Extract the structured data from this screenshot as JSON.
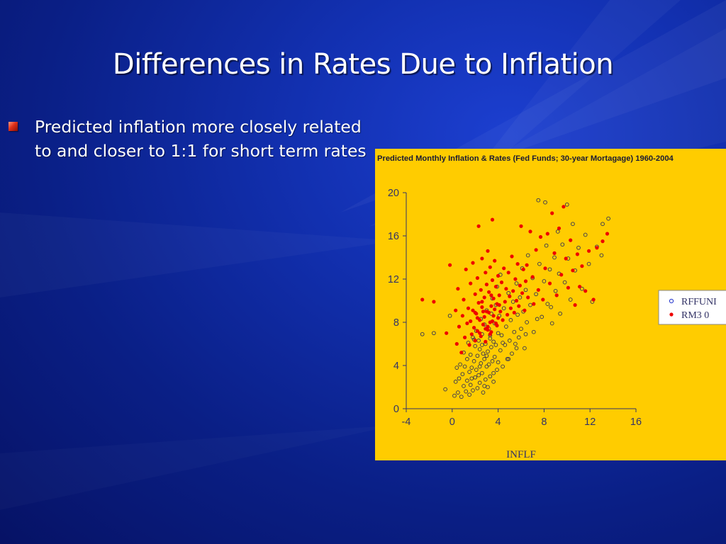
{
  "slide": {
    "title": "Differences in Rates Due to Inflation",
    "bullets": [
      "Predicted inflation more closely related to and closer to 1:1 for short term rates"
    ]
  },
  "colors": {
    "background": "#0a1f86",
    "chart_panel": "#ffcc00",
    "rffunds": "#2233cc",
    "rm30": "#ee0000",
    "bullet": "#e0301a"
  },
  "chart_data": {
    "type": "scatter",
    "title": "Predicted Monthly Inflation & Rates (Fed Funds; 30-year Mortagage) 1960-2004",
    "xlabel": "INFLF",
    "ylabel": "",
    "xlim": [
      -4,
      16
    ],
    "ylim": [
      0,
      20
    ],
    "xticks": [
      "-4",
      "0",
      "4",
      "8",
      "12",
      "16"
    ],
    "yticks": [
      "0",
      "4",
      "8",
      "12",
      "16",
      "20"
    ],
    "legend_position": "right",
    "series": [
      {
        "name": "RFFUNDS",
        "legend_label": "RFFUNI",
        "marker": "open-circle",
        "color": "#2233cc",
        "points": [
          [
            -2.6,
            6.9
          ],
          [
            -1.6,
            7.0
          ],
          [
            -0.6,
            1.8
          ],
          [
            -0.2,
            8.6
          ],
          [
            0.2,
            1.2
          ],
          [
            0.3,
            2.5
          ],
          [
            0.4,
            3.8
          ],
          [
            0.5,
            1.5
          ],
          [
            0.6,
            2.8
          ],
          [
            0.7,
            4.1
          ],
          [
            0.8,
            1.1
          ],
          [
            0.9,
            3.2
          ],
          [
            1.0,
            5.2
          ],
          [
            1.0,
            2.1
          ],
          [
            1.1,
            3.9
          ],
          [
            1.2,
            1.6
          ],
          [
            1.3,
            4.6
          ],
          [
            1.3,
            2.6
          ],
          [
            1.4,
            6.1
          ],
          [
            1.5,
            3.4
          ],
          [
            1.5,
            1.3
          ],
          [
            1.6,
            5.0
          ],
          [
            1.6,
            2.2
          ],
          [
            1.7,
            3.8
          ],
          [
            1.8,
            6.6
          ],
          [
            1.8,
            1.7
          ],
          [
            1.9,
            4.4
          ],
          [
            2.0,
            2.9
          ],
          [
            2.0,
            5.8
          ],
          [
            2.1,
            3.6
          ],
          [
            2.1,
            7.2
          ],
          [
            2.2,
            1.9
          ],
          [
            2.2,
            4.9
          ],
          [
            2.3,
            6.3
          ],
          [
            2.3,
            3.1
          ],
          [
            2.4,
            5.5
          ],
          [
            2.4,
            2.4
          ],
          [
            2.5,
            8.3
          ],
          [
            2.5,
            4.2
          ],
          [
            2.6,
            6.9
          ],
          [
            2.6,
            3.3
          ],
          [
            2.7,
            5.1
          ],
          [
            2.7,
            1.5
          ],
          [
            2.8,
            7.8
          ],
          [
            2.8,
            4.6
          ],
          [
            2.9,
            2.7
          ],
          [
            2.9,
            6.0
          ],
          [
            3.0,
            3.9
          ],
          [
            3.0,
            9.1
          ],
          [
            3.1,
            5.3
          ],
          [
            3.1,
            2.0
          ],
          [
            3.2,
            7.4
          ],
          [
            3.2,
            4.1
          ],
          [
            3.3,
            6.5
          ],
          [
            3.3,
            3.0
          ],
          [
            3.4,
            8.8
          ],
          [
            3.4,
            5.7
          ],
          [
            3.5,
            4.4
          ],
          [
            3.5,
            10.2
          ],
          [
            3.6,
            6.2
          ],
          [
            3.6,
            2.5
          ],
          [
            3.7,
            7.9
          ],
          [
            3.7,
            4.8
          ],
          [
            3.8,
            9.6
          ],
          [
            3.8,
            5.9
          ],
          [
            3.9,
            3.6
          ],
          [
            3.9,
            11.3
          ],
          [
            4.0,
            7.0
          ],
          [
            4.0,
            4.3
          ],
          [
            4.1,
            8.6
          ],
          [
            4.2,
            5.4
          ],
          [
            4.2,
            12.4
          ],
          [
            4.3,
            6.8
          ],
          [
            4.4,
            3.9
          ],
          [
            4.5,
            9.3
          ],
          [
            4.6,
            5.9
          ],
          [
            4.7,
            7.6
          ],
          [
            4.8,
            4.6
          ],
          [
            4.9,
            10.7
          ],
          [
            5.0,
            6.3
          ],
          [
            5.1,
            8.2
          ],
          [
            5.2,
            5.1
          ],
          [
            5.3,
            9.9
          ],
          [
            5.4,
            7.1
          ],
          [
            5.5,
            6.0
          ],
          [
            5.6,
            11.6
          ],
          [
            5.7,
            8.7
          ],
          [
            5.8,
            6.6
          ],
          [
            5.9,
            10.3
          ],
          [
            6.0,
            7.4
          ],
          [
            6.1,
            13.0
          ],
          [
            6.2,
            9.0
          ],
          [
            6.3,
            5.6
          ],
          [
            6.4,
            11.0
          ],
          [
            6.5,
            8.0
          ],
          [
            6.6,
            14.2
          ],
          [
            6.8,
            9.6
          ],
          [
            7.0,
            12.1
          ],
          [
            7.1,
            7.1
          ],
          [
            7.3,
            10.6
          ],
          [
            7.5,
            19.3
          ],
          [
            7.6,
            13.4
          ],
          [
            7.8,
            8.5
          ],
          [
            8.0,
            11.8
          ],
          [
            8.1,
            19.1
          ],
          [
            8.2,
            15.1
          ],
          [
            8.3,
            9.7
          ],
          [
            8.5,
            12.9
          ],
          [
            8.7,
            7.9
          ],
          [
            8.9,
            14.0
          ],
          [
            9.0,
            10.9
          ],
          [
            9.2,
            16.4
          ],
          [
            9.3,
            12.5
          ],
          [
            9.4,
            8.8
          ],
          [
            9.6,
            15.2
          ],
          [
            9.8,
            11.7
          ],
          [
            10.0,
            18.9
          ],
          [
            10.1,
            13.9
          ],
          [
            10.3,
            10.1
          ],
          [
            10.5,
            17.1
          ],
          [
            10.7,
            12.8
          ],
          [
            11.0,
            14.9
          ],
          [
            11.3,
            11.1
          ],
          [
            11.6,
            16.1
          ],
          [
            11.9,
            13.4
          ],
          [
            12.2,
            9.9
          ],
          [
            12.6,
            15.0
          ],
          [
            13.0,
            14.2
          ],
          [
            13.1,
            17.1
          ],
          [
            13.6,
            17.6
          ],
          [
            1.9,
            6.4
          ],
          [
            2.6,
            5.9
          ],
          [
            3.3,
            6.8
          ],
          [
            4.4,
            6.1
          ],
          [
            3.0,
            4.9
          ],
          [
            2.4,
            3.9
          ],
          [
            3.6,
            3.3
          ],
          [
            1.7,
            2.8
          ],
          [
            2.8,
            2.1
          ],
          [
            4.9,
            4.6
          ],
          [
            5.6,
            5.6
          ],
          [
            6.4,
            6.9
          ],
          [
            7.4,
            8.3
          ],
          [
            8.6,
            9.4
          ]
        ]
      },
      {
        "name": "RM30",
        "legend_label": "RM3 0",
        "marker": "filled-circle",
        "color": "#ee0000",
        "points": [
          [
            -2.6,
            10.1
          ],
          [
            -1.6,
            9.9
          ],
          [
            -0.5,
            7.0
          ],
          [
            -0.2,
            13.3
          ],
          [
            0.3,
            9.1
          ],
          [
            0.4,
            6.0
          ],
          [
            0.5,
            11.1
          ],
          [
            0.6,
            7.6
          ],
          [
            0.8,
            5.2
          ],
          [
            0.9,
            8.6
          ],
          [
            1.0,
            10.1
          ],
          [
            1.1,
            6.6
          ],
          [
            1.2,
            12.9
          ],
          [
            1.3,
            7.9
          ],
          [
            1.4,
            9.3
          ],
          [
            1.5,
            5.9
          ],
          [
            1.6,
            8.1
          ],
          [
            1.6,
            11.6
          ],
          [
            1.7,
            6.9
          ],
          [
            1.8,
            9.1
          ],
          [
            1.8,
            13.5
          ],
          [
            1.9,
            7.5
          ],
          [
            2.0,
            10.6
          ],
          [
            2.0,
            6.3
          ],
          [
            2.1,
            8.8
          ],
          [
            2.2,
            12.1
          ],
          [
            2.2,
            7.2
          ],
          [
            2.3,
            9.8
          ],
          [
            2.3,
            16.9
          ],
          [
            2.4,
            8.2
          ],
          [
            2.5,
            11.0
          ],
          [
            2.5,
            6.7
          ],
          [
            2.6,
            9.4
          ],
          [
            2.6,
            13.9
          ],
          [
            2.7,
            7.8
          ],
          [
            2.8,
            10.3
          ],
          [
            2.8,
            8.5
          ],
          [
            2.9,
            12.6
          ],
          [
            2.9,
            6.2
          ],
          [
            3.0,
            9.0
          ],
          [
            3.0,
            11.5
          ],
          [
            3.1,
            7.3
          ],
          [
            3.1,
            14.6
          ],
          [
            3.2,
            8.9
          ],
          [
            3.2,
            10.8
          ],
          [
            3.3,
            8.0
          ],
          [
            3.3,
            13.1
          ],
          [
            3.4,
            9.5
          ],
          [
            3.4,
            7.1
          ],
          [
            3.5,
            11.9
          ],
          [
            3.5,
            17.5
          ],
          [
            3.6,
            8.6
          ],
          [
            3.6,
            10.2
          ],
          [
            3.7,
            9.2
          ],
          [
            3.7,
            13.7
          ],
          [
            3.8,
            7.9
          ],
          [
            3.8,
            11.3
          ],
          [
            3.9,
            9.7
          ],
          [
            4.0,
            8.4
          ],
          [
            4.0,
            12.3
          ],
          [
            4.1,
            10.5
          ],
          [
            4.2,
            9.0
          ],
          [
            4.3,
            11.7
          ],
          [
            4.4,
            8.2
          ],
          [
            4.5,
            13.0
          ],
          [
            4.6,
            9.9
          ],
          [
            4.7,
            11.1
          ],
          [
            4.8,
            8.7
          ],
          [
            4.9,
            12.6
          ],
          [
            5.0,
            10.4
          ],
          [
            5.1,
            9.3
          ],
          [
            5.2,
            14.1
          ],
          [
            5.3,
            10.9
          ],
          [
            5.4,
            8.9
          ],
          [
            5.5,
            12.0
          ],
          [
            5.6,
            10.0
          ],
          [
            5.7,
            13.4
          ],
          [
            5.8,
            9.5
          ],
          [
            5.9,
            11.4
          ],
          [
            6.0,
            16.9
          ],
          [
            6.1,
            10.7
          ],
          [
            6.2,
            12.9
          ],
          [
            6.3,
            9.1
          ],
          [
            6.4,
            11.8
          ],
          [
            6.5,
            13.3
          ],
          [
            6.6,
            10.3
          ],
          [
            6.8,
            16.4
          ],
          [
            7.0,
            12.2
          ],
          [
            7.1,
            9.7
          ],
          [
            7.3,
            14.7
          ],
          [
            7.5,
            11.0
          ],
          [
            7.7,
            15.9
          ],
          [
            7.9,
            10.1
          ],
          [
            8.1,
            13.0
          ],
          [
            8.3,
            16.2
          ],
          [
            8.5,
            11.6
          ],
          [
            8.7,
            18.1
          ],
          [
            8.9,
            14.4
          ],
          [
            9.1,
            10.5
          ],
          [
            9.3,
            16.7
          ],
          [
            9.5,
            12.4
          ],
          [
            9.7,
            18.7
          ],
          [
            9.9,
            13.9
          ],
          [
            10.1,
            11.2
          ],
          [
            10.3,
            15.6
          ],
          [
            10.5,
            12.8
          ],
          [
            10.7,
            9.6
          ],
          [
            10.9,
            14.3
          ],
          [
            11.1,
            11.3
          ],
          [
            11.3,
            13.2
          ],
          [
            11.6,
            10.9
          ],
          [
            11.9,
            14.6
          ],
          [
            12.3,
            10.1
          ],
          [
            12.6,
            14.9
          ],
          [
            13.1,
            15.5
          ],
          [
            13.5,
            16.2
          ],
          [
            2.2,
            8.4
          ],
          [
            2.7,
            9.0
          ],
          [
            3.1,
            7.6
          ],
          [
            3.5,
            8.1
          ],
          [
            2.4,
            7.0
          ],
          [
            2.9,
            7.4
          ],
          [
            3.3,
            6.9
          ],
          [
            3.9,
            7.7
          ],
          [
            2.0,
            8.9
          ],
          [
            2.6,
            9.9
          ],
          [
            3.4,
            10.5
          ],
          [
            4.1,
            9.6
          ]
        ]
      }
    ]
  }
}
